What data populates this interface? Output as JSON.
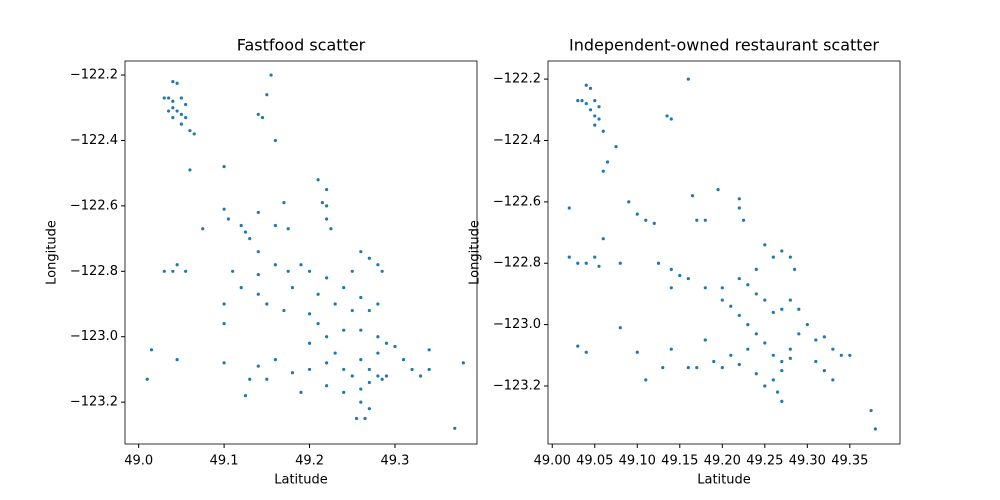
{
  "chart_data": [
    {
      "type": "scatter",
      "title": "Fastfood scatter",
      "x_label": "Latitude",
      "y_label": "Longitude",
      "color": "#1f77b4",
      "xlim": [
        48.984,
        49.396
      ],
      "ylim": [
        -123.328,
        -122.157
      ],
      "xticks": [
        {
          "value": 49.0,
          "label": "49.0"
        },
        {
          "value": 49.1,
          "label": "49.1"
        },
        {
          "value": 49.2,
          "label": "49.2"
        },
        {
          "value": 49.3,
          "label": "49.3"
        }
      ],
      "yticks": [
        {
          "value": -122.2,
          "label": "−122.2"
        },
        {
          "value": -122.4,
          "label": "−122.4"
        },
        {
          "value": -122.6,
          "label": "−122.6"
        },
        {
          "value": -122.8,
          "label": "−122.8"
        },
        {
          "value": -123.0,
          "label": "−123.0"
        },
        {
          "value": -123.2,
          "label": "−123.2"
        }
      ],
      "x": [
        49.04,
        49.045,
        49.03,
        49.035,
        49.04,
        49.05,
        49.055,
        49.04,
        49.045,
        49.05,
        49.055,
        49.05,
        49.06,
        49.065,
        49.035,
        49.04,
        49.155,
        49.15,
        49.14,
        49.145,
        49.16,
        49.06,
        49.1,
        49.21,
        49.22,
        49.215,
        49.22,
        49.1,
        49.105,
        49.12,
        49.125,
        49.075,
        49.13,
        49.14,
        49.17,
        49.16,
        49.175,
        49.22,
        49.225,
        49.14,
        49.04,
        49.045,
        49.03,
        49.055,
        49.11,
        49.12,
        49.14,
        49.14,
        49.16,
        49.175,
        49.19,
        49.18,
        49.2,
        49.21,
        49.22,
        49.26,
        49.27,
        49.25,
        49.28,
        49.285,
        49.24,
        49.26,
        49.23,
        49.25,
        49.27,
        49.28,
        49.1,
        49.15,
        49.17,
        49.2,
        49.21,
        49.22,
        49.24,
        49.26,
        49.28,
        49.29,
        49.3,
        49.2,
        49.23,
        49.26,
        49.28,
        49.27,
        49.28,
        49.285,
        49.29,
        49.27,
        49.26,
        49.25,
        49.24,
        49.22,
        49.2,
        49.18,
        49.16,
        49.14,
        49.13,
        49.125,
        49.15,
        49.19,
        49.22,
        49.24,
        49.26,
        49.27,
        49.265,
        49.255,
        49.31,
        49.32,
        49.33,
        49.34,
        49.34,
        49.045,
        49.01,
        49.015,
        49.1,
        49.1,
        49.37,
        49.38
      ],
      "y": [
        -122.22,
        -122.225,
        -122.27,
        -122.27,
        -122.28,
        -122.27,
        -122.29,
        -122.3,
        -122.31,
        -122.32,
        -122.33,
        -122.35,
        -122.37,
        -122.38,
        -122.31,
        -122.33,
        -122.2,
        -122.26,
        -122.32,
        -122.33,
        -122.4,
        -122.49,
        -122.48,
        -122.52,
        -122.55,
        -122.59,
        -122.6,
        -122.61,
        -122.64,
        -122.66,
        -122.68,
        -122.67,
        -122.7,
        -122.62,
        -122.59,
        -122.66,
        -122.67,
        -122.64,
        -122.67,
        -122.74,
        -122.8,
        -122.78,
        -122.8,
        -122.8,
        -122.8,
        -122.85,
        -122.81,
        -122.87,
        -122.78,
        -122.8,
        -122.78,
        -122.85,
        -122.8,
        -122.87,
        -122.82,
        -122.74,
        -122.76,
        -122.8,
        -122.78,
        -122.8,
        -122.85,
        -122.88,
        -122.9,
        -122.92,
        -122.92,
        -122.9,
        -122.9,
        -122.9,
        -122.92,
        -122.93,
        -122.96,
        -123.0,
        -122.98,
        -122.98,
        -123.0,
        -123.02,
        -123.03,
        -123.02,
        -123.05,
        -123.07,
        -123.05,
        -123.1,
        -123.12,
        -123.13,
        -123.12,
        -123.14,
        -123.16,
        -123.12,
        -123.1,
        -123.08,
        -123.1,
        -123.11,
        -123.07,
        -123.09,
        -123.13,
        -123.18,
        -123.13,
        -123.17,
        -123.15,
        -123.17,
        -123.2,
        -123.22,
        -123.25,
        -123.25,
        -123.07,
        -123.1,
        -123.12,
        -123.04,
        -123.1,
        -123.07,
        -123.13,
        -123.04,
        -123.08,
        -122.96,
        -123.28,
        -123.08
      ]
    },
    {
      "type": "scatter",
      "title": "Independent-owned restaurant scatter",
      "x_label": "Latitude",
      "y_label": "Longitude",
      "color": "#1f77b4",
      "xlim": [
        48.995,
        49.409
      ],
      "ylim": [
        -123.389,
        -122.141
      ],
      "xticks": [
        {
          "value": 49.0,
          "label": "49.00"
        },
        {
          "value": 49.05,
          "label": "49.05"
        },
        {
          "value": 49.1,
          "label": "49.10"
        },
        {
          "value": 49.15,
          "label": "49.15"
        },
        {
          "value": 49.2,
          "label": "49.20"
        },
        {
          "value": 49.25,
          "label": "49.25"
        },
        {
          "value": 49.3,
          "label": "49.30"
        },
        {
          "value": 49.35,
          "label": "49.35"
        }
      ],
      "yticks": [
        {
          "value": -122.2,
          "label": "−122.2"
        },
        {
          "value": -122.4,
          "label": "−122.4"
        },
        {
          "value": -122.6,
          "label": "−122.6"
        },
        {
          "value": -122.8,
          "label": "−122.8"
        },
        {
          "value": -123.0,
          "label": "−123.0"
        },
        {
          "value": -123.2,
          "label": "−123.2"
        }
      ],
      "x": [
        49.04,
        49.045,
        49.03,
        49.035,
        49.04,
        49.05,
        49.055,
        49.045,
        49.05,
        49.055,
        49.05,
        49.06,
        49.16,
        49.135,
        49.14,
        49.065,
        49.06,
        49.075,
        49.02,
        49.09,
        49.1,
        49.11,
        49.12,
        49.17,
        49.18,
        49.165,
        49.195,
        49.22,
        49.22,
        49.225,
        49.06,
        49.02,
        49.03,
        49.04,
        49.05,
        49.055,
        49.08,
        49.125,
        49.14,
        49.15,
        49.16,
        49.14,
        49.18,
        49.2,
        49.22,
        49.24,
        49.26,
        49.28,
        49.285,
        49.25,
        49.27,
        49.2,
        49.21,
        49.22,
        49.23,
        49.24,
        49.25,
        49.23,
        49.21,
        49.19,
        49.17,
        49.16,
        49.18,
        49.14,
        49.13,
        49.1,
        49.04,
        49.03,
        49.08,
        49.26,
        49.27,
        49.28,
        49.27,
        49.26,
        49.265,
        49.27,
        49.25,
        49.24,
        49.28,
        49.29,
        49.3,
        49.31,
        49.32,
        49.33,
        49.34,
        49.31,
        49.32,
        49.33,
        49.35,
        49.375,
        49.38,
        49.11,
        49.2,
        49.22,
        49.29,
        49.28,
        49.27,
        49.26,
        49.25,
        49.24,
        49.23
      ],
      "y": [
        -122.22,
        -122.23,
        -122.27,
        -122.27,
        -122.28,
        -122.27,
        -122.29,
        -122.3,
        -122.32,
        -122.33,
        -122.35,
        -122.37,
        -122.2,
        -122.32,
        -122.33,
        -122.47,
        -122.5,
        -122.42,
        -122.62,
        -122.6,
        -122.64,
        -122.66,
        -122.67,
        -122.66,
        -122.66,
        -122.58,
        -122.56,
        -122.59,
        -122.62,
        -122.66,
        -122.72,
        -122.78,
        -122.8,
        -122.8,
        -122.78,
        -122.81,
        -122.8,
        -122.8,
        -122.82,
        -122.84,
        -122.85,
        -122.88,
        -122.88,
        -122.88,
        -122.85,
        -122.82,
        -122.78,
        -122.78,
        -122.82,
        -122.74,
        -122.76,
        -122.92,
        -122.94,
        -122.97,
        -123.0,
        -123.03,
        -123.06,
        -123.08,
        -123.1,
        -123.12,
        -123.14,
        -123.14,
        -123.05,
        -123.08,
        -123.14,
        -123.09,
        -123.09,
        -123.07,
        -123.01,
        -123.1,
        -123.12,
        -123.11,
        -123.15,
        -123.18,
        -123.22,
        -123.25,
        -123.2,
        -123.16,
        -123.08,
        -123.03,
        -123.0,
        -123.05,
        -123.04,
        -123.08,
        -123.1,
        -123.12,
        -123.15,
        -123.18,
        -123.1,
        -123.28,
        -123.34,
        -123.18,
        -123.14,
        -123.13,
        -122.95,
        -122.92,
        -122.95,
        -122.96,
        -122.92,
        -122.9,
        -122.87
      ]
    }
  ]
}
